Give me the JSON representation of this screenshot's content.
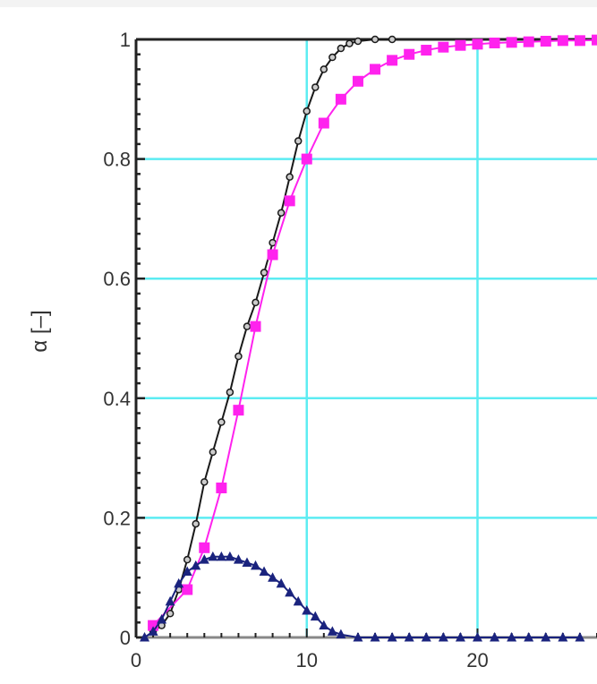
{
  "chart_data": {
    "type": "line",
    "title": "",
    "xlabel": "",
    "ylabel": "α [–]",
    "xlim": [
      0,
      27
    ],
    "ylim": [
      0,
      1
    ],
    "x_ticks": [
      "0",
      "10",
      "20"
    ],
    "y_ticks": [
      "0",
      "0.2",
      "0.4",
      "0.6",
      "0.8",
      "1"
    ],
    "grid": true,
    "grid_color": "#5cecf2",
    "series": [
      {
        "name": "",
        "color": "#1a1a1a",
        "marker": "circle",
        "points": [
          [
            1,
            0.01
          ],
          [
            1.5,
            0.02
          ],
          [
            2,
            0.04
          ],
          [
            2.5,
            0.08
          ],
          [
            3,
            0.13
          ],
          [
            3.5,
            0.19
          ],
          [
            4,
            0.26
          ],
          [
            4.5,
            0.31
          ],
          [
            5,
            0.36
          ],
          [
            5.5,
            0.41
          ],
          [
            6,
            0.47
          ],
          [
            6.5,
            0.52
          ],
          [
            7,
            0.56
          ],
          [
            7.5,
            0.61
          ],
          [
            8,
            0.66
          ],
          [
            8.5,
            0.71
          ],
          [
            9,
            0.77
          ],
          [
            9.5,
            0.83
          ],
          [
            10,
            0.88
          ],
          [
            10.5,
            0.92
          ],
          [
            11,
            0.95
          ],
          [
            11.5,
            0.97
          ],
          [
            12,
            0.985
          ],
          [
            12.5,
            0.993
          ],
          [
            13,
            0.997
          ],
          [
            14,
            1.0
          ],
          [
            15,
            1.0
          ]
        ]
      },
      {
        "name": "",
        "color": "#ff22ee",
        "marker": "square",
        "points": [
          [
            1,
            0.02
          ],
          [
            3,
            0.08
          ],
          [
            4,
            0.15
          ],
          [
            5,
            0.25
          ],
          [
            6,
            0.38
          ],
          [
            7,
            0.52
          ],
          [
            8,
            0.64
          ],
          [
            9,
            0.73
          ],
          [
            10,
            0.8
          ],
          [
            11,
            0.86
          ],
          [
            12,
            0.9
          ],
          [
            13,
            0.93
          ],
          [
            14,
            0.95
          ],
          [
            15,
            0.965
          ],
          [
            16,
            0.975
          ],
          [
            17,
            0.982
          ],
          [
            18,
            0.987
          ],
          [
            19,
            0.99
          ],
          [
            20,
            0.992
          ],
          [
            21,
            0.994
          ],
          [
            22,
            0.995
          ],
          [
            23,
            0.996
          ],
          [
            24,
            0.997
          ],
          [
            25,
            0.998
          ],
          [
            26,
            0.998
          ],
          [
            27,
            0.999
          ]
        ]
      },
      {
        "name": "",
        "color": "#1a237e",
        "marker": "triangle",
        "points": [
          [
            0.5,
            0.0
          ],
          [
            1,
            0.01
          ],
          [
            1.5,
            0.03
          ],
          [
            2,
            0.06
          ],
          [
            2.5,
            0.09
          ],
          [
            3,
            0.11
          ],
          [
            3.5,
            0.12
          ],
          [
            4,
            0.13
          ],
          [
            4.5,
            0.135
          ],
          [
            5,
            0.135
          ],
          [
            5.5,
            0.135
          ],
          [
            6,
            0.13
          ],
          [
            6.5,
            0.125
          ],
          [
            7,
            0.12
          ],
          [
            7.5,
            0.11
          ],
          [
            8,
            0.1
          ],
          [
            8.5,
            0.09
          ],
          [
            9,
            0.075
          ],
          [
            9.5,
            0.06
          ],
          [
            10,
            0.045
          ],
          [
            10.5,
            0.035
          ],
          [
            11,
            0.02
          ],
          [
            11.5,
            0.01
          ],
          [
            12,
            0.005
          ],
          [
            13,
            0.0
          ],
          [
            14,
            0.0
          ],
          [
            15,
            0.0
          ],
          [
            16,
            0.0
          ],
          [
            17,
            0.0
          ],
          [
            18,
            0.0
          ],
          [
            19,
            0.0
          ],
          [
            20,
            0.0
          ],
          [
            21,
            0.0
          ],
          [
            22,
            0.0
          ],
          [
            23,
            0.0
          ],
          [
            24,
            0.0
          ],
          [
            25,
            0.0
          ],
          [
            26,
            0.0
          ]
        ]
      }
    ]
  }
}
